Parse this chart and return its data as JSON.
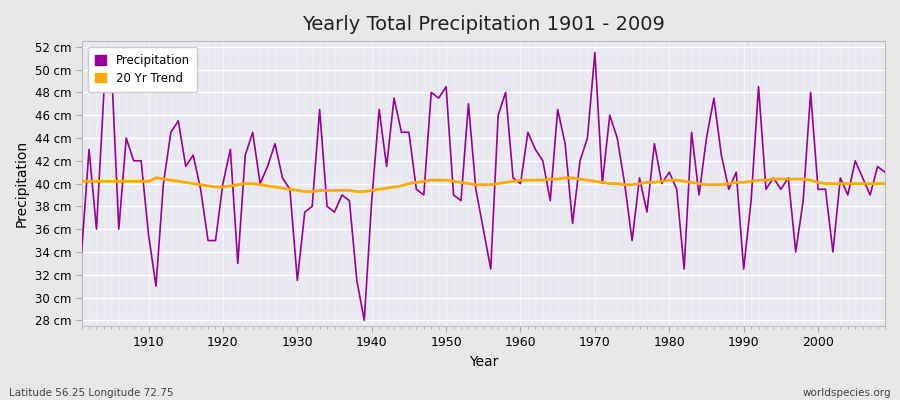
{
  "title": "Yearly Total Precipitation 1901 - 2009",
  "xlabel": "Year",
  "ylabel": "Precipitation",
  "bottom_left_label": "Latitude 56.25 Longitude 72.75",
  "bottom_right_label": "worldspecies.org",
  "legend_labels": [
    "Precipitation",
    "20 Yr Trend"
  ],
  "precip_color": "#990099",
  "trend_color": "#ffaa00",
  "fig_facecolor": "#e8e8e8",
  "ax_facecolor": "#e8e8f0",
  "ylim": [
    27.5,
    52.5
  ],
  "years": [
    1901,
    1902,
    1903,
    1904,
    1905,
    1906,
    1907,
    1908,
    1909,
    1910,
    1911,
    1912,
    1913,
    1914,
    1915,
    1916,
    1917,
    1918,
    1919,
    1920,
    1921,
    1922,
    1923,
    1924,
    1925,
    1926,
    1927,
    1928,
    1929,
    1930,
    1931,
    1932,
    1933,
    1934,
    1935,
    1936,
    1937,
    1938,
    1939,
    1940,
    1941,
    1942,
    1943,
    1944,
    1945,
    1946,
    1947,
    1948,
    1949,
    1950,
    1951,
    1952,
    1953,
    1954,
    1955,
    1956,
    1957,
    1958,
    1959,
    1960,
    1961,
    1962,
    1963,
    1964,
    1965,
    1966,
    1967,
    1968,
    1969,
    1970,
    1971,
    1972,
    1973,
    1974,
    1975,
    1976,
    1977,
    1978,
    1979,
    1980,
    1981,
    1982,
    1983,
    1984,
    1985,
    1986,
    1987,
    1988,
    1989,
    1990,
    1991,
    1992,
    1993,
    1994,
    1995,
    1996,
    1997,
    1998,
    1999,
    2000,
    2001,
    2002,
    2003,
    2004,
    2005,
    2006,
    2007,
    2008,
    2009
  ],
  "precip": [
    34.0,
    43.0,
    36.0,
    48.0,
    50.5,
    36.0,
    44.0,
    42.0,
    42.0,
    35.5,
    31.0,
    40.0,
    44.5,
    45.5,
    41.5,
    42.5,
    39.5,
    35.0,
    35.0,
    40.0,
    43.0,
    33.0,
    42.5,
    44.5,
    40.0,
    41.5,
    43.5,
    40.5,
    39.5,
    31.5,
    37.5,
    38.0,
    46.5,
    38.0,
    37.5,
    39.0,
    38.5,
    31.5,
    28.0,
    38.5,
    46.5,
    41.5,
    47.5,
    44.5,
    44.5,
    39.5,
    39.0,
    48.0,
    47.5,
    48.5,
    39.0,
    38.5,
    47.0,
    39.5,
    36.0,
    32.5,
    46.0,
    48.0,
    40.5,
    40.0,
    44.5,
    43.0,
    42.0,
    38.5,
    46.5,
    43.5,
    36.5,
    42.0,
    44.0,
    51.5,
    40.0,
    46.0,
    44.0,
    40.0,
    35.0,
    40.5,
    37.5,
    43.5,
    40.0,
    41.0,
    39.5,
    32.5,
    44.5,
    39.0,
    44.0,
    47.5,
    42.5,
    39.5,
    41.0,
    32.5,
    38.5,
    48.5,
    39.5,
    40.5,
    39.5,
    40.5,
    34.0,
    38.5,
    48.0,
    39.5,
    39.5,
    34.0,
    40.5,
    39.0,
    42.0,
    40.5,
    39.0,
    41.5,
    41.0
  ],
  "trend": [
    40.2,
    40.2,
    40.2,
    40.2,
    40.2,
    40.2,
    40.2,
    40.2,
    40.2,
    40.2,
    40.5,
    40.4,
    40.3,
    40.2,
    40.1,
    40.0,
    39.9,
    39.8,
    39.7,
    39.7,
    39.8,
    39.9,
    40.0,
    40.0,
    39.9,
    39.8,
    39.7,
    39.6,
    39.5,
    39.4,
    39.3,
    39.3,
    39.4,
    39.4,
    39.4,
    39.4,
    39.4,
    39.3,
    39.3,
    39.4,
    39.5,
    39.6,
    39.7,
    39.8,
    40.0,
    40.1,
    40.2,
    40.3,
    40.3,
    40.3,
    40.2,
    40.1,
    40.0,
    39.9,
    39.9,
    39.9,
    40.0,
    40.1,
    40.2,
    40.3,
    40.3,
    40.3,
    40.3,
    40.4,
    40.4,
    40.5,
    40.5,
    40.4,
    40.3,
    40.2,
    40.1,
    40.0,
    40.0,
    39.9,
    39.9,
    40.0,
    40.1,
    40.1,
    40.2,
    40.3,
    40.3,
    40.2,
    40.1,
    40.0,
    39.9,
    39.9,
    39.9,
    40.0,
    40.1,
    40.1,
    40.2,
    40.3,
    40.3,
    40.4,
    40.4,
    40.4,
    40.4,
    40.4,
    40.3,
    40.1,
    40.0,
    40.0,
    40.0,
    40.0,
    40.0,
    40.0,
    40.0,
    40.0,
    40.0
  ]
}
